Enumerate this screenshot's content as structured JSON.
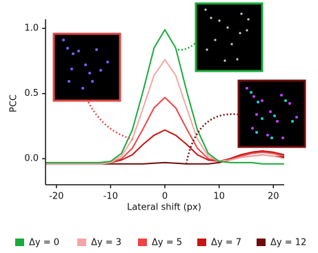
{
  "chart_data": {
    "type": "line",
    "y_label": "PCC",
    "x_label": "Lateral shift (px)",
    "x": [
      -22,
      -20,
      -18,
      -16,
      -14,
      -12,
      -10,
      -8,
      -6,
      -4,
      -2,
      0,
      2,
      4,
      6,
      8,
      10,
      12,
      14,
      16,
      18,
      20,
      22
    ],
    "series": [
      {
        "name": "Δy = 0",
        "color": "#1aab3c",
        "values": [
          -0.03,
          -0.03,
          -0.03,
          -0.03,
          -0.03,
          -0.03,
          -0.02,
          0.04,
          0.22,
          0.52,
          0.85,
          0.99,
          0.85,
          0.52,
          0.22,
          0.04,
          -0.02,
          -0.03,
          -0.03,
          -0.03,
          -0.04,
          -0.04,
          -0.04
        ]
      },
      {
        "name": "Δy = 3",
        "color": "#f4a6a6",
        "values": [
          -0.04,
          -0.04,
          -0.04,
          -0.04,
          -0.04,
          -0.04,
          -0.03,
          0.02,
          0.15,
          0.39,
          0.64,
          0.76,
          0.64,
          0.39,
          0.15,
          0.02,
          -0.02,
          -0.01,
          0.01,
          0.02,
          0.03,
          0.02,
          0.0
        ]
      },
      {
        "name": "Δy = 5",
        "color": "#ef4444",
        "values": [
          -0.04,
          -0.04,
          -0.04,
          -0.04,
          -0.04,
          -0.04,
          -0.03,
          0.0,
          0.08,
          0.23,
          0.39,
          0.47,
          0.39,
          0.23,
          0.08,
          0.0,
          -0.02,
          -0.01,
          0.02,
          0.04,
          0.05,
          0.04,
          0.02
        ]
      },
      {
        "name": "Δy = 7",
        "color": "#c81414",
        "values": [
          -0.04,
          -0.04,
          -0.04,
          -0.04,
          -0.04,
          -0.04,
          -0.03,
          -0.01,
          0.03,
          0.11,
          0.18,
          0.22,
          0.18,
          0.11,
          0.03,
          -0.01,
          -0.02,
          0.0,
          0.03,
          0.05,
          0.06,
          0.05,
          0.03
        ]
      },
      {
        "name": "Δy = 12",
        "color": "#6e0c0c",
        "values": [
          -0.04,
          -0.04,
          -0.04,
          -0.04,
          -0.04,
          -0.04,
          -0.04,
          -0.04,
          -0.04,
          -0.04,
          -0.035,
          -0.03,
          -0.035,
          -0.04,
          -0.04,
          -0.04,
          -0.03,
          -0.01,
          0.01,
          0.02,
          0.03,
          0.02,
          0.01
        ]
      }
    ],
    "xlim": [
      -22,
      22
    ],
    "ylim": [
      -0.2,
      1.07
    ],
    "xticks": [
      -20,
      -10,
      0,
      10,
      20
    ],
    "yticks": [
      {
        "value": 0,
        "label": "0.0"
      },
      {
        "value": 0.5,
        "label": "0.5"
      },
      {
        "value": 1,
        "label": "1.0"
      }
    ]
  }
}
